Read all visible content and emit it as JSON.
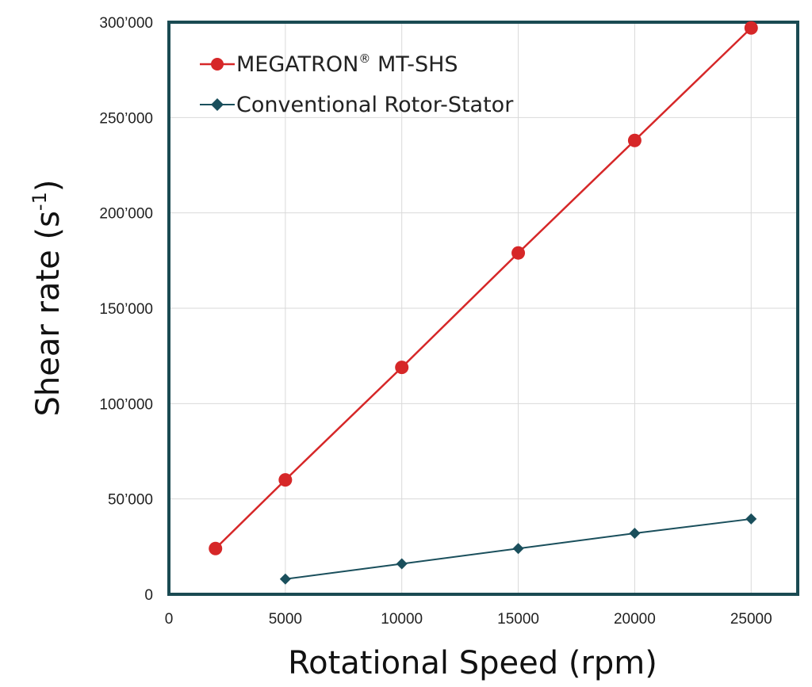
{
  "chart_data": {
    "type": "line",
    "title": "",
    "xlabel": "Rotational Speed (rpm)",
    "ylabel": "Shear rate (s",
    "ylabel_sup": "-1",
    "ylabel_end": ")",
    "xlim": [
      0,
      27000
    ],
    "ylim": [
      0,
      300000
    ],
    "x_ticks": [
      0,
      5000,
      10000,
      15000,
      20000,
      25000
    ],
    "x_tick_labels": [
      "0",
      "5000",
      "10000",
      "15000",
      "20000",
      "25000"
    ],
    "y_ticks": [
      0,
      50000,
      100000,
      150000,
      200000,
      250000,
      300000
    ],
    "y_tick_labels": [
      "0",
      "50’000",
      "100’000",
      "150’000",
      "200’000",
      "250’000",
      "300’000"
    ],
    "grid": true,
    "legend_position": "top-left",
    "series": [
      {
        "name": "MEGATRON® MT-SHS",
        "name_main": "MEGATRON",
        "name_sup": "®",
        "name_end": " MT-SHS",
        "color": "#d62728",
        "marker": "circle",
        "x": [
          2000,
          5000,
          10000,
          15000,
          20000,
          25000
        ],
        "y": [
          24000,
          60000,
          119000,
          179000,
          238000,
          297000
        ]
      },
      {
        "name": "Conventional Rotor-Stator",
        "color": "#1a4f5c",
        "marker": "diamond",
        "x": [
          5000,
          10000,
          15000,
          20000,
          25000
        ],
        "y": [
          8000,
          16000,
          24000,
          32000,
          39500
        ]
      }
    ]
  }
}
